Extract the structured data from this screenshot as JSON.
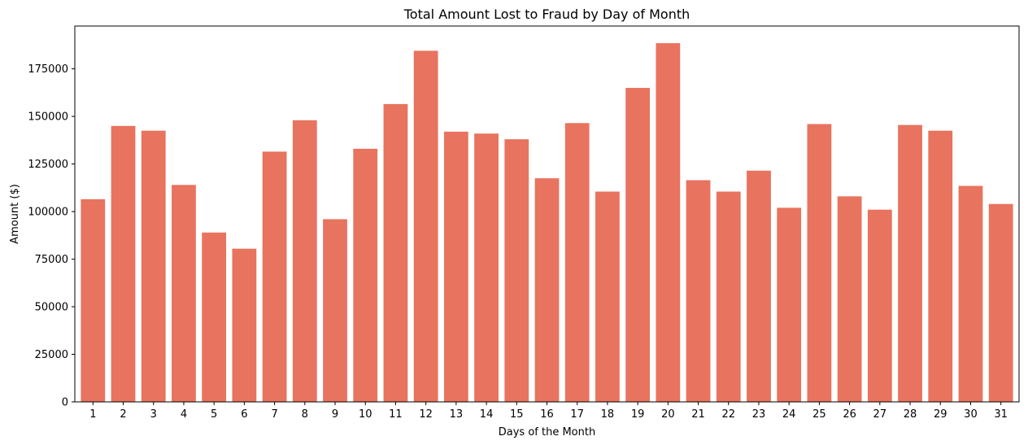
{
  "chart_data": {
    "type": "bar",
    "title": "Total Amount Lost to Fraud by Day of Month",
    "xlabel": "Days of the Month",
    "ylabel": "Amount ($)",
    "categories": [
      "1",
      "2",
      "3",
      "4",
      "5",
      "6",
      "7",
      "8",
      "9",
      "10",
      "11",
      "12",
      "13",
      "14",
      "15",
      "16",
      "17",
      "18",
      "19",
      "20",
      "21",
      "22",
      "23",
      "24",
      "25",
      "26",
      "27",
      "28",
      "29",
      "30",
      "31"
    ],
    "values": [
      106500,
      145000,
      142500,
      114000,
      89000,
      80500,
      131500,
      148000,
      96000,
      133000,
      156500,
      184500,
      142000,
      141000,
      138000,
      117500,
      146500,
      110500,
      165000,
      188500,
      116500,
      110500,
      121500,
      102000,
      146000,
      108000,
      101000,
      145500,
      142500,
      113500,
      104000
    ],
    "ylim": [
      0,
      197500
    ],
    "yticks": [
      0,
      25000,
      50000,
      75000,
      100000,
      125000,
      150000,
      175000
    ],
    "ytick_labels": [
      "0",
      "25000",
      "50000",
      "75000",
      "100000",
      "125000",
      "150000",
      "175000"
    ],
    "bar_color": "#E8735E",
    "grid": false,
    "legend": "none"
  }
}
